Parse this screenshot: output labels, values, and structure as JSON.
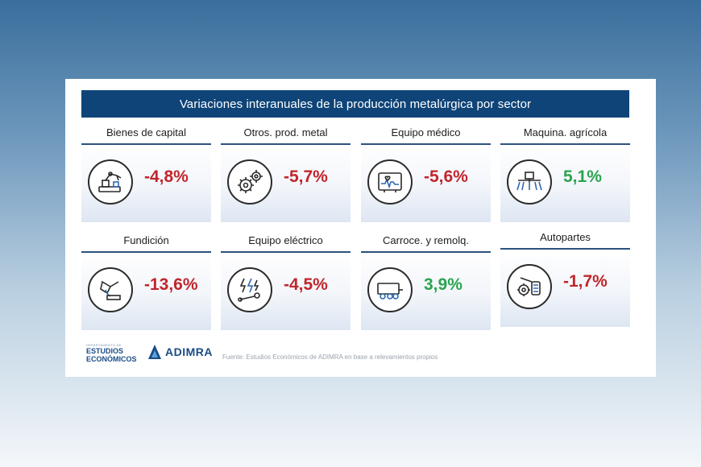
{
  "title": "Variaciones interanuales de la producción metalúrgica por sector",
  "tiles": [
    {
      "label": "Bienes de capital",
      "value": "-4,8%",
      "trend": "negative",
      "icon": "robot-arm-icon"
    },
    {
      "label": "Otros. prod. metal",
      "value": "-5,7%",
      "trend": "negative",
      "icon": "gears-icon"
    },
    {
      "label": "Equipo médico",
      "value": "-5,6%",
      "trend": "negative",
      "icon": "heart-monitor-icon"
    },
    {
      "label": "Maquina. agrícola",
      "value": "5,1%",
      "trend": "positive",
      "icon": "sprayer-icon"
    },
    {
      "label": "Fundición",
      "value": "-13,6%",
      "trend": "negative",
      "icon": "ladle-icon"
    },
    {
      "label": "Equipo eléctrico",
      "value": "-4,5%",
      "trend": "negative",
      "icon": "bolts-wrench-icon"
    },
    {
      "label": "Carroce. y remolq.",
      "value": "3,9%",
      "trend": "positive",
      "icon": "trailer-icon"
    },
    {
      "label": "Autopartes",
      "value": "-1,7%",
      "trend": "negative",
      "icon": "auto-parts-icon"
    }
  ],
  "footer": {
    "estudios_small": "DEPARTAMENTO DE",
    "estudios_line1": "ESTUDIOS",
    "estudios_line2": "ECONÓMICOS",
    "adimra": "ADIMRA",
    "source": "Fuente: Estudios Económicos de ADIMRA en base a relevamientos propios"
  },
  "colors": {
    "title_bar": "#0f4478",
    "negative": "#c0262b",
    "positive": "#2aa44f",
    "rule": "#2c527e"
  }
}
